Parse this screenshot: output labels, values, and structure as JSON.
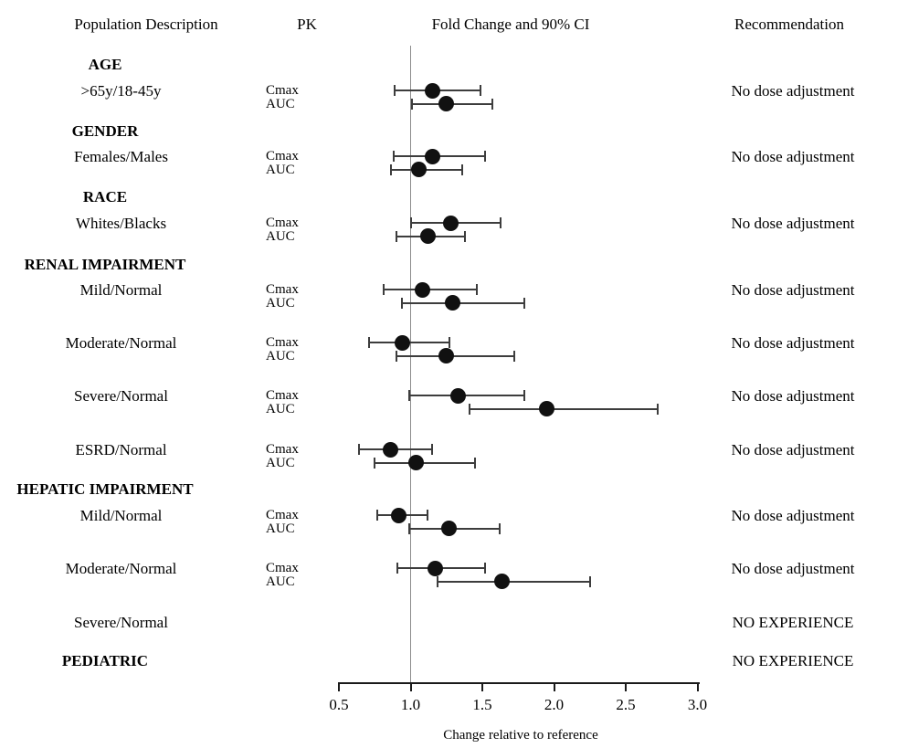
{
  "header": {
    "population": "Population Description",
    "pk": "PK",
    "fold_change": "Fold Change and 90% CI",
    "recommendation": "Recommendation"
  },
  "colors": {
    "marker": "#111111",
    "ci_line": "#3d3d3d",
    "reference_line": "#8c8c8c",
    "axis": "#1a1a1a",
    "text": "#000000",
    "background": "#ffffff"
  },
  "chart_data": {
    "type": "forest",
    "title": "Fold Change and 90% CI",
    "xlabel": "Change relative to reference",
    "x_ticks": [
      0.5,
      1.0,
      1.5,
      2.0,
      2.5,
      3.0
    ],
    "x_range": [
      0.5,
      3.0
    ],
    "reference_line": 1.0,
    "sections": [
      {
        "heading": "AGE",
        "rows": [
          {
            "label": ">65y/18-45y",
            "recommendation": "No dose adjustment",
            "pk": [
              {
                "name": "Cmax",
                "estimate": 1.15,
                "ci_low": 0.89,
                "ci_high": 1.49
              },
              {
                "name": "AUC",
                "estimate": 1.25,
                "ci_low": 1.01,
                "ci_high": 1.57
              }
            ]
          }
        ]
      },
      {
        "heading": "GENDER",
        "rows": [
          {
            "label": "Females/Males",
            "recommendation": "No dose adjustment",
            "pk": [
              {
                "name": "Cmax",
                "estimate": 1.15,
                "ci_low": 0.88,
                "ci_high": 1.52
              },
              {
                "name": "AUC",
                "estimate": 1.06,
                "ci_low": 0.86,
                "ci_high": 1.36
              }
            ]
          }
        ]
      },
      {
        "heading": "RACE",
        "rows": [
          {
            "label": "Whites/Blacks",
            "recommendation": "No dose adjustment",
            "pk": [
              {
                "name": "Cmax",
                "estimate": 1.28,
                "ci_low": 1.0,
                "ci_high": 1.63
              },
              {
                "name": "AUC",
                "estimate": 1.12,
                "ci_low": 0.9,
                "ci_high": 1.38
              }
            ]
          }
        ]
      },
      {
        "heading": "RENAL IMPAIRMENT",
        "rows": [
          {
            "label": "Mild/Normal",
            "recommendation": "No dose adjustment",
            "pk": [
              {
                "name": "Cmax",
                "estimate": 1.08,
                "ci_low": 0.81,
                "ci_high": 1.46
              },
              {
                "name": "AUC",
                "estimate": 1.29,
                "ci_low": 0.94,
                "ci_high": 1.79
              }
            ]
          },
          {
            "label": "Moderate/Normal",
            "recommendation": "No dose adjustment",
            "pk": [
              {
                "name": "Cmax",
                "estimate": 0.94,
                "ci_low": 0.71,
                "ci_high": 1.27
              },
              {
                "name": "AUC",
                "estimate": 1.25,
                "ci_low": 0.9,
                "ci_high": 1.72
              }
            ]
          },
          {
            "label": "Severe/Normal",
            "recommendation": "No dose adjustment",
            "pk": [
              {
                "name": "Cmax",
                "estimate": 1.33,
                "ci_low": 0.99,
                "ci_high": 1.79
              },
              {
                "name": "AUC",
                "estimate": 1.95,
                "ci_low": 1.41,
                "ci_high": 2.72
              }
            ]
          },
          {
            "label": "ESRD/Normal",
            "recommendation": "No dose adjustment",
            "pk": [
              {
                "name": "Cmax",
                "estimate": 0.86,
                "ci_low": 0.64,
                "ci_high": 1.15
              },
              {
                "name": "AUC",
                "estimate": 1.04,
                "ci_low": 0.75,
                "ci_high": 1.45
              }
            ]
          }
        ]
      },
      {
        "heading": "HEPATIC IMPAIRMENT",
        "rows": [
          {
            "label": "Mild/Normal",
            "recommendation": "No dose adjustment",
            "pk": [
              {
                "name": "Cmax",
                "estimate": 0.92,
                "ci_low": 0.77,
                "ci_high": 1.12
              },
              {
                "name": "AUC",
                "estimate": 1.27,
                "ci_low": 0.99,
                "ci_high": 1.62
              }
            ]
          },
          {
            "label": "Moderate/Normal",
            "recommendation": "No dose adjustment",
            "pk": [
              {
                "name": "Cmax",
                "estimate": 1.17,
                "ci_low": 0.91,
                "ci_high": 1.52
              },
              {
                "name": "AUC",
                "estimate": 1.64,
                "ci_low": 1.19,
                "ci_high": 2.25
              }
            ]
          },
          {
            "label": "Severe/Normal",
            "recommendation": "NO EXPERIENCE",
            "pk": []
          }
        ]
      },
      {
        "heading": "PEDIATRIC",
        "heading_recommendation": "NO EXPERIENCE",
        "rows": []
      }
    ]
  }
}
